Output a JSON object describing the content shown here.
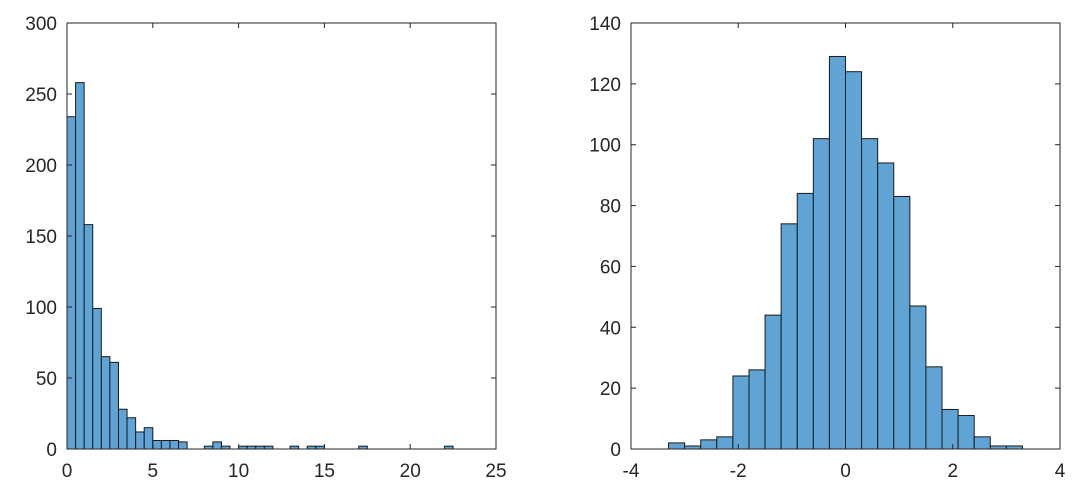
{
  "chart_data": [
    {
      "type": "bar",
      "subtype": "histogram",
      "title": "",
      "xlabel": "",
      "ylabel": "",
      "xlim": [
        0,
        25
      ],
      "ylim": [
        0,
        300
      ],
      "xticks": [
        0,
        5,
        10,
        15,
        20,
        25
      ],
      "yticks": [
        0,
        50,
        100,
        150,
        200,
        250,
        300
      ],
      "xtick_labels": [
        "0",
        "5",
        "10",
        "15",
        "20",
        "25"
      ],
      "ytick_labels": [
        "0",
        "50",
        "100",
        "150",
        "200",
        "250",
        "300"
      ],
      "bin_start": 0,
      "bin_width": 0.5,
      "values": [
        234,
        258,
        158,
        99,
        65,
        61,
        28,
        22,
        12,
        15,
        6,
        6,
        6,
        5,
        0,
        0,
        2,
        5,
        2,
        0,
        2,
        2,
        2,
        2,
        0,
        0,
        2,
        0,
        2,
        2,
        0,
        0,
        0,
        0,
        2,
        0,
        0,
        0,
        0,
        0,
        0,
        0,
        0,
        0,
        2
      ],
      "bar_color": "#5fa4d4",
      "grid": false
    },
    {
      "type": "bar",
      "subtype": "histogram",
      "title": "",
      "xlabel": "",
      "ylabel": "",
      "xlim": [
        -4,
        4
      ],
      "ylim": [
        0,
        140
      ],
      "xticks": [
        -4,
        -2,
        0,
        2,
        4
      ],
      "yticks": [
        0,
        20,
        40,
        60,
        80,
        100,
        120,
        140
      ],
      "xtick_labels": [
        "-4",
        "-2",
        "0",
        "2",
        "4"
      ],
      "ytick_labels": [
        "0",
        "20",
        "40",
        "60",
        "80",
        "100",
        "120",
        "140"
      ],
      "bin_start": -3.3,
      "bin_width": 0.3,
      "values": [
        2,
        1,
        3,
        4,
        24,
        26,
        44,
        74,
        84,
        102,
        129,
        124,
        102,
        94,
        83,
        47,
        27,
        13,
        11,
        4,
        1,
        1
      ],
      "bar_color": "#5fa4d4",
      "grid": false
    }
  ]
}
